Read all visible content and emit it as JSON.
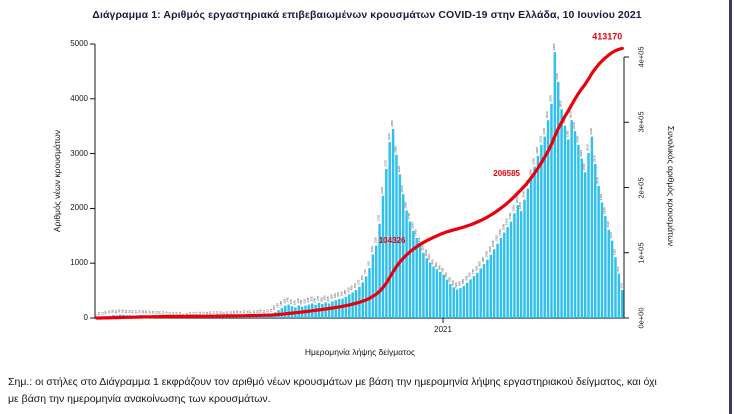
{
  "page": {
    "title": "Διάγραμμα 1: Αριθμός εργαστηριακά επιβεβαιωμένων κρουσμάτων COVID-19 στην Ελλάδα, 10 Ιουνίου 2021",
    "footnote_line1": "Σημ.: οι στήλες στο Διάγραμμα 1 εκφράζουν τον αριθμό νέων κρουσμάτων με βάση την ημερομηνία λήψης εργαστηριακού δείγματος, και όχι",
    "footnote_line2": "με βάση την ημερομηνία ανακοίνωσης των κρουσμάτων."
  },
  "chart_data": {
    "type": "combo-bar-line",
    "title": "Διάγραμμα 1: Αριθμός εργαστηριακά επιβεβαιωμένων κρουσμάτων COVID-19 στην Ελλάδα, 10 Ιουνίου 2021",
    "xlabel": "Ημερομηνία λήψης δείγματος",
    "ylabel_left": "Αριθμός νέων κρουσμάτων",
    "ylabel_right": "Συνολικός αριθμός κρουσμάτων",
    "x_range_dates": [
      "2020-02-26",
      "2021-06-10"
    ],
    "left_axis_ticks": [
      0,
      1000,
      2000,
      3000,
      4000,
      5000
    ],
    "left_axis_tick_labels": [
      "0",
      "1000",
      "2000",
      "3000",
      "4000",
      "5000"
    ],
    "right_axis_tick_values": [
      0,
      100000,
      200000,
      300000,
      400000
    ],
    "right_axis_tick_labels": [
      "0e+00",
      "1e+05",
      "2e+05",
      "3e+05",
      "4e+05"
    ],
    "x_ticks": [
      {
        "label": "2021",
        "bucket": 103.3
      }
    ],
    "bar_color": "#2fc0ed",
    "line_color": "#e8000d",
    "bar_label_color": "#3a3a3a",
    "bars_days_per_bucket": 3,
    "daily_new_cases": [
      8,
      14,
      21,
      30,
      42,
      55,
      48,
      62,
      58,
      49,
      52,
      44,
      47,
      53,
      40,
      45,
      36,
      41,
      33,
      28,
      24,
      19,
      16,
      12,
      10,
      13,
      9,
      11,
      14,
      12,
      17,
      19,
      22,
      18,
      26,
      31,
      24,
      28,
      21,
      26,
      32,
      36,
      40,
      34,
      44,
      39,
      47,
      43,
      52,
      58,
      49,
      63,
      72,
      105,
      145,
      185,
      225,
      245,
      215,
      195,
      230,
      205,
      225,
      245,
      265,
      240,
      275,
      255,
      285,
      265,
      305,
      325,
      345,
      355,
      385,
      430,
      465,
      510,
      570,
      650,
      760,
      910,
      1160,
      1320,
      1720,
      2230,
      2720,
      3210,
      3450,
      2980,
      2620,
      2260,
      1960,
      1760,
      1590,
      1460,
      1310,
      1190,
      1090,
      1010,
      940,
      890,
      840,
      790,
      700,
      620,
      560,
      520,
      545,
      585,
      645,
      705,
      765,
      825,
      905,
      985,
      1065,
      1155,
      1255,
      1355,
      1460,
      1560,
      1660,
      1760,
      1910,
      2060,
      1950,
      2160,
      2360,
      2560,
      2760,
      2960,
      3160,
      3310,
      3610,
      3910,
      4850,
      4310,
      3810,
      3510,
      3260,
      3610,
      3410,
      3160,
      2910,
      2660,
      3010,
      3310,
      2810,
      2410,
      2110,
      1860,
      1610,
      1410,
      1110,
      810,
      510
    ],
    "cumulative_final": 413170,
    "annotations": [
      {
        "label": "104326",
        "cumulative_value": 104326
      },
      {
        "label": "206585",
        "cumulative_value": 206585
      },
      {
        "label": "413170",
        "cumulative_value": 413170
      }
    ]
  }
}
